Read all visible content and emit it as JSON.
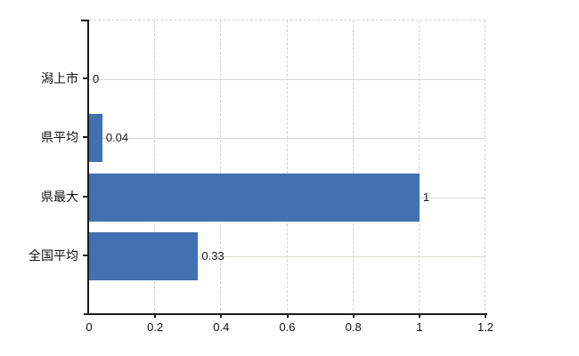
{
  "chart_data": {
    "type": "bar",
    "orientation": "horizontal",
    "title": "",
    "xlabel": "",
    "ylabel": "",
    "categories": [
      "潟上市",
      "県平均",
      "県最大",
      "全国平均"
    ],
    "values": [
      0,
      0.04,
      1,
      0.33
    ],
    "value_labels": [
      "0",
      "0.04",
      "1",
      "0.33"
    ],
    "x_ticks": [
      0,
      0.2,
      0.4,
      0.6,
      0.8,
      1,
      1.2
    ],
    "x_tick_labels": [
      "0",
      "0.2",
      "0.4",
      "0.6",
      "0.8",
      "1",
      "1.2"
    ],
    "xlim": [
      0,
      1.2
    ],
    "grid": true,
    "legend": false,
    "bar_color": "#4271b2"
  },
  "colors": {
    "bar": "#4271b2",
    "axis": "#1a1a1a",
    "grid_vertical": "#d2d2d2",
    "grid_horizontal": "#d5dcd2",
    "text": "#111111",
    "background": "#ffffff"
  }
}
